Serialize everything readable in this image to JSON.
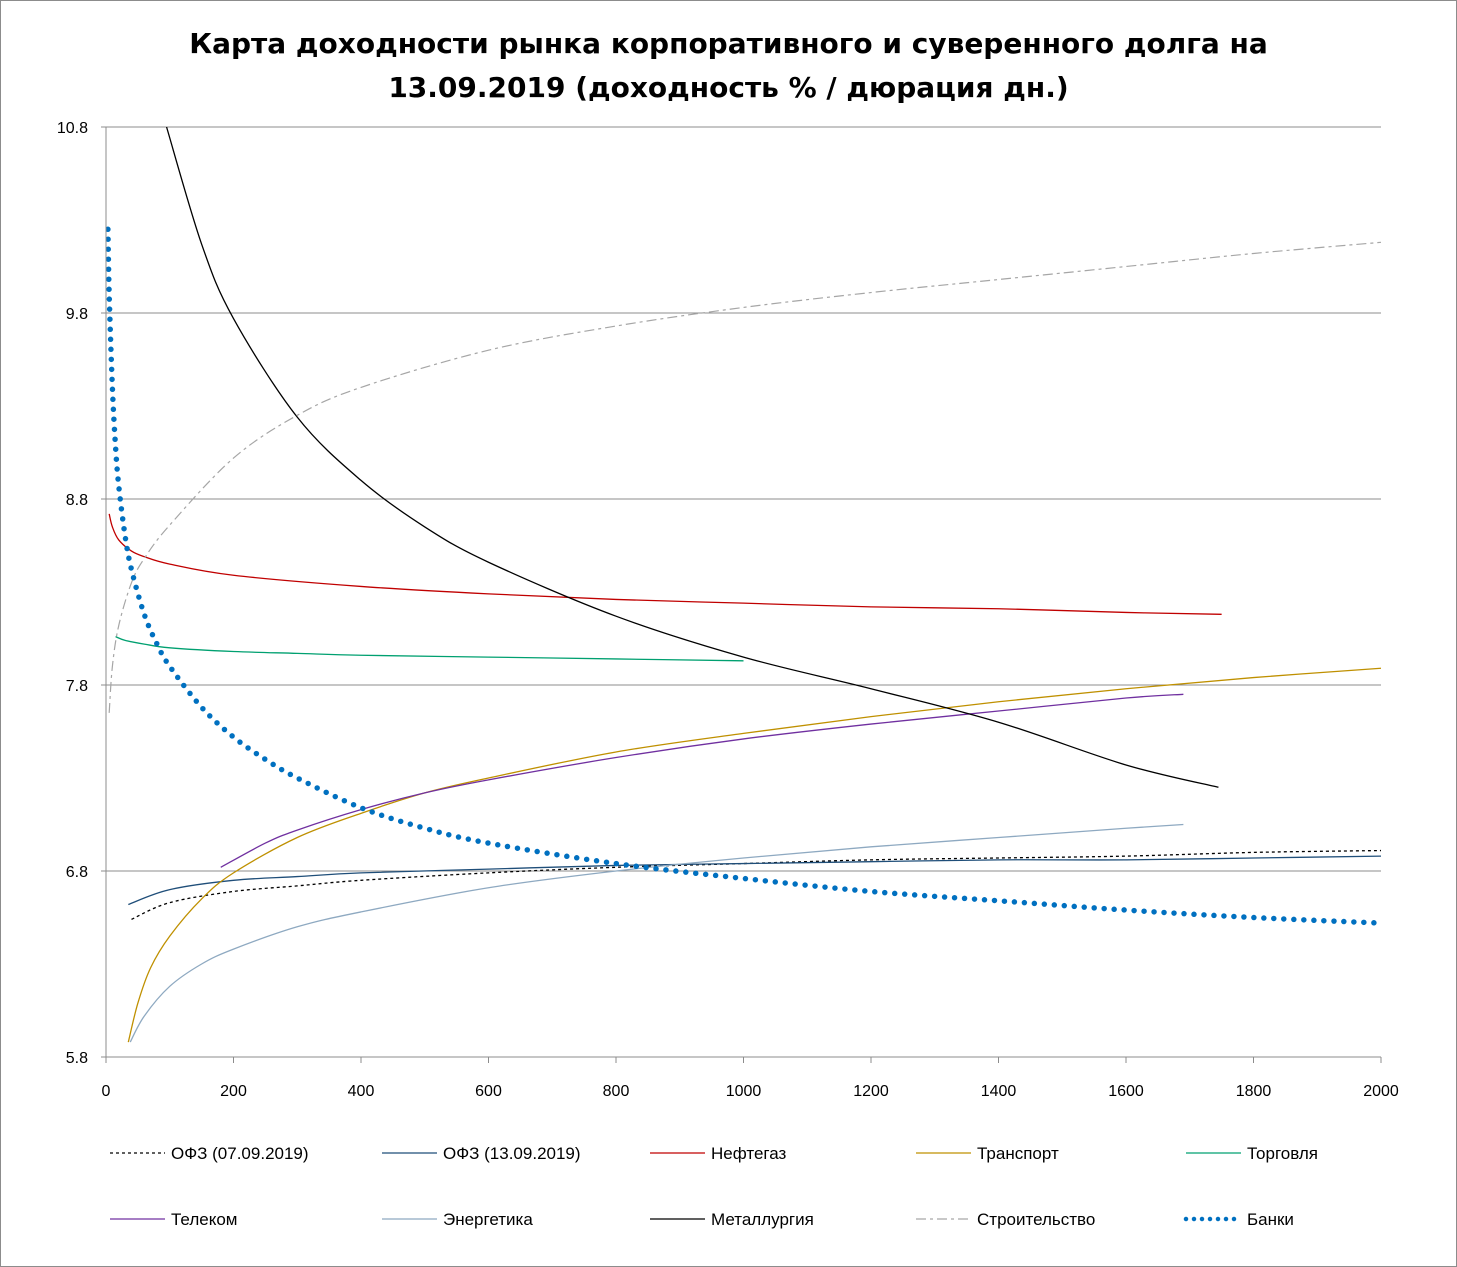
{
  "chart_data": {
    "type": "line",
    "title_line1": "Карта доходности рынка корпоративного и суверенного долга на",
    "title_line2": "13.09.2019 (доходность % / дюрация дн.)",
    "xlabel": "",
    "ylabel": "",
    "xlim": [
      0,
      2000
    ],
    "ylim": [
      5.8,
      10.8
    ],
    "x_ticks": [
      0,
      200,
      400,
      600,
      800,
      1000,
      1200,
      1400,
      1600,
      1800,
      2000
    ],
    "y_ticks": [
      5.8,
      6.8,
      7.8,
      8.8,
      9.8,
      10.8
    ],
    "y_tick_labels": [
      "5.8",
      "6.8",
      "7.8",
      "8.8",
      "9.8",
      "10.8"
    ],
    "grid": "horizontal",
    "legend_position": "bottom",
    "series": [
      {
        "name": "ОФЗ (07.09.2019)",
        "color": "#000000",
        "dash": "3,3",
        "width": 1.3,
        "x": [
          40,
          100,
          200,
          300,
          400,
          600,
          800,
          1000,
          1200,
          1400,
          1600,
          1800,
          2000
        ],
        "y": [
          6.54,
          6.63,
          6.69,
          6.72,
          6.75,
          6.79,
          6.82,
          6.84,
          6.86,
          6.87,
          6.88,
          6.9,
          6.91
        ]
      },
      {
        "name": "ОФЗ (13.09.2019)",
        "color": "#1f4e79",
        "dash": "",
        "width": 1.3,
        "x": [
          35,
          100,
          200,
          300,
          400,
          600,
          800,
          1000,
          1200,
          1400,
          1600,
          1800,
          2000
        ],
        "y": [
          6.62,
          6.7,
          6.75,
          6.77,
          6.79,
          6.81,
          6.83,
          6.84,
          6.85,
          6.86,
          6.86,
          6.87,
          6.88
        ]
      },
      {
        "name": "Нефтегаз",
        "color": "#c00000",
        "dash": "",
        "width": 1.3,
        "x": [
          5,
          10,
          20,
          40,
          60,
          100,
          200,
          400,
          600,
          800,
          1000,
          1200,
          1400,
          1600,
          1750
        ],
        "y": [
          8.72,
          8.65,
          8.58,
          8.52,
          8.49,
          8.45,
          8.39,
          8.33,
          8.29,
          8.26,
          8.24,
          8.22,
          8.21,
          8.19,
          8.18
        ]
      },
      {
        "name": "Транспорт",
        "color": "#bf9000",
        "dash": "",
        "width": 1.3,
        "x": [
          35,
          50,
          70,
          100,
          150,
          200,
          300,
          400,
          500,
          600,
          800,
          1000,
          1200,
          1400,
          1600,
          1800,
          2000
        ],
        "y": [
          5.88,
          6.09,
          6.28,
          6.45,
          6.65,
          6.79,
          6.98,
          7.11,
          7.22,
          7.3,
          7.44,
          7.54,
          7.63,
          7.71,
          7.78,
          7.84,
          7.89
        ]
      },
      {
        "name": "Торговля",
        "color": "#00a070",
        "dash": "",
        "width": 1.3,
        "x": [
          15,
          30,
          60,
          100,
          200,
          300,
          400,
          600,
          800,
          1000
        ],
        "y": [
          8.06,
          8.04,
          8.02,
          8.0,
          7.98,
          7.97,
          7.96,
          7.95,
          7.94,
          7.93
        ]
      },
      {
        "name": "Телеком",
        "color": "#7030a0",
        "dash": "",
        "width": 1.3,
        "x": [
          180,
          250,
          300,
          400,
          500,
          600,
          800,
          1000,
          1200,
          1400,
          1600,
          1690
        ],
        "y": [
          6.82,
          6.95,
          7.02,
          7.13,
          7.22,
          7.29,
          7.41,
          7.51,
          7.59,
          7.66,
          7.73,
          7.75
        ]
      },
      {
        "name": "Энергетика",
        "color": "#8ea9c1",
        "dash": "",
        "width": 1.3,
        "x": [
          38,
          60,
          100,
          150,
          200,
          300,
          400,
          600,
          800,
          1000,
          1200,
          1400,
          1600,
          1690
        ],
        "y": [
          5.88,
          6.02,
          6.18,
          6.3,
          6.38,
          6.5,
          6.58,
          6.71,
          6.8,
          6.87,
          6.93,
          6.98,
          7.03,
          7.05
        ]
      },
      {
        "name": "Металлургия",
        "color": "#000000",
        "dash": "",
        "width": 1.3,
        "x": [
          95,
          150,
          200,
          300,
          400,
          500,
          600,
          800,
          1000,
          1200,
          1400,
          1600,
          1745
        ],
        "y": [
          10.8,
          10.17,
          9.77,
          9.24,
          8.9,
          8.65,
          8.46,
          8.17,
          7.95,
          7.78,
          7.6,
          7.37,
          7.25
        ]
      },
      {
        "name": "Строительство",
        "color": "#a6a6a6",
        "dash": "10,4,3,4",
        "width": 1.2,
        "x": [
          5,
          10,
          20,
          40,
          60,
          100,
          200,
          300,
          400,
          600,
          800,
          1000,
          1200,
          1400,
          1600,
          1800,
          2000
        ],
        "y": [
          7.65,
          7.9,
          8.12,
          8.35,
          8.48,
          8.66,
          9.02,
          9.25,
          9.4,
          9.6,
          9.73,
          9.83,
          9.91,
          9.98,
          10.05,
          10.12,
          10.18
        ]
      },
      {
        "name": "Банки",
        "color": "#0070c0",
        "dash": "dots",
        "width": 5.5,
        "x": [
          3,
          5,
          10,
          15,
          20,
          30,
          40,
          60,
          80,
          100,
          150,
          200,
          250,
          300,
          400,
          500,
          600,
          800,
          1000,
          1200,
          1400,
          1600,
          1800,
          2000
        ],
        "y": [
          10.25,
          9.9,
          9.4,
          9.08,
          8.87,
          8.6,
          8.42,
          8.18,
          8.02,
          7.9,
          7.68,
          7.52,
          7.4,
          7.3,
          7.14,
          7.03,
          6.95,
          6.84,
          6.76,
          6.69,
          6.64,
          6.59,
          6.55,
          6.52
        ]
      }
    ]
  }
}
